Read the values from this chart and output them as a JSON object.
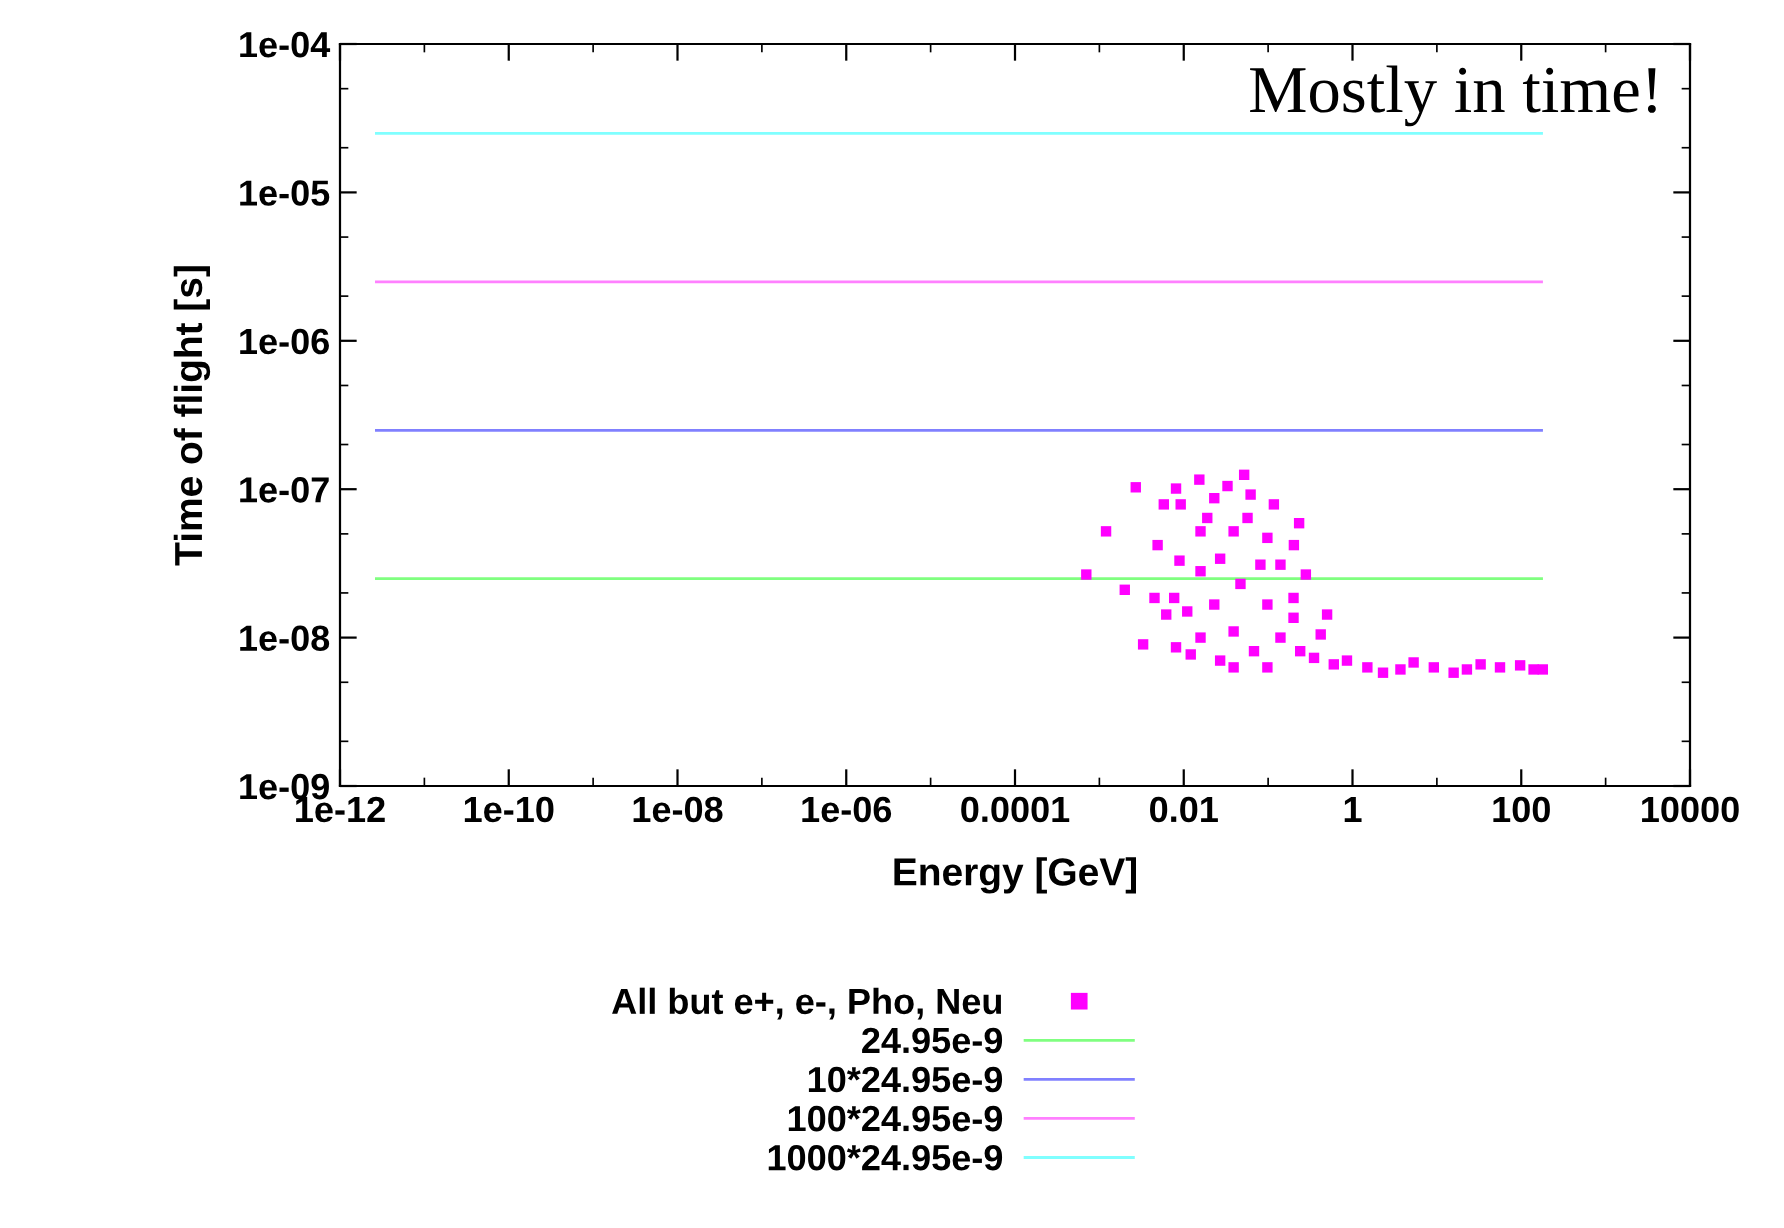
{
  "chart_data": {
    "type": "scatter",
    "xlabel": "Energy [GeV]",
    "ylabel": "Time of flight [s]",
    "log": "xy",
    "xlim": [
      1e-12,
      10000
    ],
    "ylim": [
      1e-09,
      0.0001
    ],
    "xticks": [
      {
        "value": 1e-12,
        "label": "1e-12"
      },
      {
        "value": 1e-10,
        "label": "1e-10"
      },
      {
        "value": 1e-08,
        "label": "1e-08"
      },
      {
        "value": 1e-06,
        "label": "1e-06"
      },
      0.0001,
      0.01,
      1,
      100,
      10000
    ],
    "yticks": [
      {
        "value": 1e-09,
        "label": "1e-09"
      },
      {
        "value": 1e-08,
        "label": "1e-08"
      },
      {
        "value": 1e-07,
        "label": "1e-07"
      },
      {
        "value": 1e-06,
        "label": "1e-06"
      },
      {
        "value": 1e-05,
        "label": "1e-05"
      },
      {
        "value": 0.0001,
        "label": "1e-04"
      }
    ],
    "grid": false,
    "legend": "bottom",
    "annotations": [
      "Mostly in time!"
    ],
    "series": [
      {
        "name": "All but e+, e-, Pho, Neu",
        "color": "#ff00ff",
        "marker": "square",
        "x": [
          0.0007,
          0.0012,
          0.0027,
          0.002,
          0.0033,
          0.0045,
          0.0062,
          0.0081,
          0.0081,
          0.0153,
          0.0058,
          0.0049,
          0.0089,
          0.0121,
          0.027,
          0.052,
          0.033,
          0.062,
          0.117,
          0.233,
          0.202,
          0.28,
          0.5,
          0.42,
          0.023,
          0.0158,
          0.039,
          0.098,
          0.14,
          0.0158,
          0.047,
          0.023,
          0.098,
          0.011,
          0.2,
          0.039,
          0.14,
          0.0158,
          0.068,
          0.24,
          0.039,
          0.098,
          0.0077,
          0.027,
          0.081,
          0.057,
          0.019,
          0.0092,
          0.2,
          0.35,
          0.6,
          1.5,
          3.7,
          9.2,
          22.7,
          56,
          140,
          180,
          0.86,
          5.3,
          33,
          97,
          2.3,
          15.8
        ],
        "values": [
          2.66e-08,
          5.2e-08,
          1.03e-07,
          2.1e-08,
          9e-09,
          1.85e-08,
          1.43e-08,
          8.6e-09,
          1.01e-07,
          1.16e-07,
          7.9e-08,
          4.2e-08,
          3.3e-08,
          7.7e-09,
          7e-09,
          1.25e-07,
          1.05e-07,
          9.2e-08,
          7.9e-08,
          5.9e-08,
          4.2e-08,
          2.66e-08,
          1.43e-08,
          1.05e-08,
          8.7e-08,
          5.2e-08,
          5.2e-08,
          4.7e-08,
          3.1e-08,
          2.8e-08,
          2.3e-08,
          1.67e-08,
          1.67e-08,
          1.5e-08,
          1.85e-08,
          1.1e-08,
          1e-08,
          1e-08,
          8.1e-09,
          8.1e-09,
          6.3e-09,
          6.3e-09,
          1.85e-08,
          3.4e-08,
          3.1e-08,
          6.4e-08,
          6.4e-08,
          7.9e-08,
          1.36e-08,
          7.3e-09,
          6.6e-09,
          6.3e-09,
          6.1e-09,
          6.3e-09,
          6.1e-09,
          6.3e-09,
          6.1e-09,
          6.1e-09,
          7e-09,
          6.8e-09,
          6.6e-09,
          6.5e-09,
          5.8e-09,
          5.8e-09
        ]
      },
      {
        "name": "24.95e-9",
        "color": "#80ff80",
        "type": "line",
        "x": [
          2.7e-12,
          174
        ],
        "values": [
          2.495e-08,
          2.495e-08
        ]
      },
      {
        "name": "10*24.95e-9",
        "color": "#8080ff",
        "type": "line",
        "x": [
          2.7e-12,
          174
        ],
        "values": [
          2.495e-07,
          2.495e-07
        ]
      },
      {
        "name": "100*24.95e-9",
        "color": "#ff80ff",
        "type": "line",
        "x": [
          2.7e-12,
          174
        ],
        "values": [
          2.495e-06,
          2.495e-06
        ]
      },
      {
        "name": "1000*24.95e-9",
        "color": "#80ffff",
        "type": "line",
        "x": [
          2.7e-12,
          174
        ],
        "values": [
          2.495e-05,
          2.495e-05
        ]
      }
    ]
  }
}
